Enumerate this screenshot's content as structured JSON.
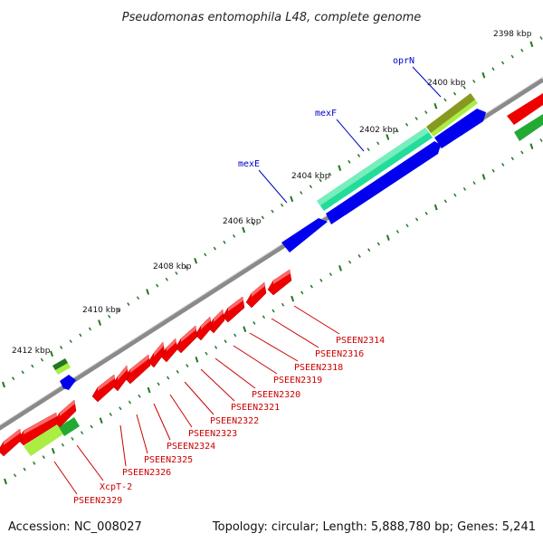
{
  "title": "Pseudomonas entomophila L48, complete genome",
  "footer": {
    "accession": "Accession: NC_008027",
    "summary": "Topology: circular; Length: 5,888,780 bp; Genes: 5,241"
  },
  "scale_labels": [
    "2398 kbp",
    "2400 kbp",
    "2402 kbp",
    "2404 kbp",
    "2406 kbp",
    "2408 kbp",
    "2410 kbp",
    "2412 kbp"
  ],
  "blue_gene_labels": [
    "oprN",
    "mexF",
    "mexE"
  ],
  "red_gene_labels": [
    "PSEEN2314",
    "PSEEN2316",
    "PSEEN2318",
    "PSEEN2319",
    "PSEEN2320",
    "PSEEN2321",
    "PSEEN2322",
    "PSEEN2323",
    "PSEEN2324",
    "PSEEN2325",
    "PSEEN2326",
    "XcpT-2",
    "PSEEN2329"
  ],
  "colors": {
    "backbone": "#8a8a8a",
    "forward_cds": "#0000ee",
    "reverse_cds": "#ee0000",
    "feature_teal": "#22dd99",
    "feature_lime": "#aaee44",
    "feature_olive": "#889922",
    "feature_green": "#22aa33",
    "tick_green": "#227722",
    "label_blue": "#0000cc",
    "label_red": "#cc0000"
  }
}
